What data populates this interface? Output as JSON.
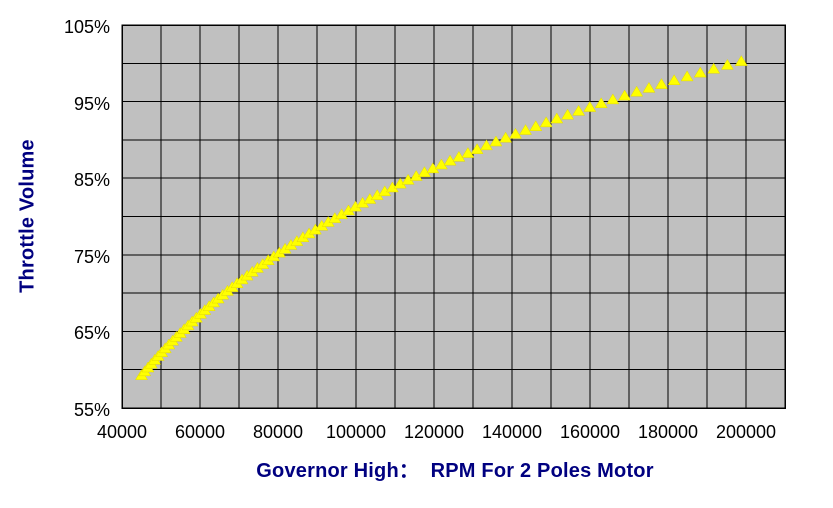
{
  "styles": {
    "page_bg": "#FFFFFF",
    "plot_bg": "#C0C0C0",
    "grid_color": "#000000",
    "border_color": "#000000",
    "marker_fill": "#FFFF00",
    "marker_edge": "#E3D900",
    "axis_title_color": "#000080",
    "tick_label_color": "#000000"
  },
  "chart_data": {
    "type": "scatter",
    "title": "",
    "xlabel": "Governor High：  RPM For 2 Poles Motor",
    "ylabel": "Throttle Volume",
    "xlim": [
      40000,
      210000
    ],
    "ylim": [
      55,
      105
    ],
    "x_ticks": [
      40000,
      60000,
      80000,
      100000,
      120000,
      140000,
      160000,
      180000,
      200000
    ],
    "x_grid_interval": 10000,
    "y_ticks": [
      105,
      95,
      85,
      75,
      65,
      55
    ],
    "y_tick_suffix": "%",
    "y_grid_interval": 5,
    "grid": "on",
    "legend": "none",
    "series": [
      {
        "name": "throttle-vs-rpm",
        "marker": "triangle-up",
        "color": "#FFFF00",
        "points": [
          [
            45000,
            59.3
          ],
          [
            45823,
            59.8
          ],
          [
            46660,
            60.3
          ],
          [
            47513,
            60.8
          ],
          [
            48382,
            61.3
          ],
          [
            49266,
            61.8
          ],
          [
            50167,
            62.3
          ],
          [
            51084,
            62.8
          ],
          [
            52018,
            63.3
          ],
          [
            52969,
            63.8
          ],
          [
            53937,
            64.3
          ],
          [
            54923,
            64.8
          ],
          [
            55928,
            65.3
          ],
          [
            56950,
            65.8
          ],
          [
            57991,
            66.3
          ],
          [
            59051,
            66.8
          ],
          [
            60131,
            67.3
          ],
          [
            61230,
            67.8
          ],
          [
            62350,
            68.3
          ],
          [
            63489,
            68.8
          ],
          [
            64650,
            69.3
          ],
          [
            65832,
            69.8
          ],
          [
            67036,
            70.3
          ],
          [
            68261,
            70.8
          ],
          [
            69509,
            71.3
          ],
          [
            70780,
            71.8
          ],
          [
            72074,
            72.3
          ],
          [
            73391,
            72.8
          ],
          [
            74733,
            73.3
          ],
          [
            76100,
            73.8
          ],
          [
            77491,
            74.3
          ],
          [
            78908,
            74.8
          ],
          [
            80350,
            75.3
          ],
          [
            81819,
            75.8
          ],
          [
            83315,
            76.3
          ],
          [
            84838,
            76.8
          ],
          [
            86389,
            77.3
          ],
          [
            87969,
            77.8
          ],
          [
            89577,
            78.3
          ],
          [
            91215,
            78.8
          ],
          [
            92882,
            79.3
          ],
          [
            94580,
            79.8
          ],
          [
            96310,
            80.3
          ],
          [
            98070,
            80.8
          ],
          [
            99863,
            81.3
          ],
          [
            101689,
            81.8
          ],
          [
            103548,
            82.3
          ],
          [
            105442,
            82.8
          ],
          [
            107369,
            83.3
          ],
          [
            109332,
            83.8
          ],
          [
            111331,
            84.3
          ],
          [
            113367,
            84.8
          ],
          [
            115439,
            85.3
          ],
          [
            117550,
            85.8
          ],
          [
            119699,
            86.3
          ],
          [
            121888,
            86.8
          ],
          [
            124116,
            87.3
          ],
          [
            126385,
            87.8
          ],
          [
            128696,
            88.3
          ],
          [
            131049,
            88.8
          ],
          [
            133445,
            89.3
          ],
          [
            135884,
            89.8
          ],
          [
            138369,
            90.3
          ],
          [
            140898,
            90.8
          ],
          [
            143474,
            91.3
          ],
          [
            146097,
            91.8
          ],
          [
            148768,
            92.3
          ],
          [
            151488,
            92.8
          ],
          [
            154258,
            93.3
          ],
          [
            157078,
            93.8
          ],
          [
            159950,
            94.3
          ],
          [
            162874,
            94.8
          ],
          [
            165852,
            95.3
          ],
          [
            168884,
            95.8
          ],
          [
            171972,
            96.3
          ],
          [
            175116,
            96.8
          ],
          [
            178318,
            97.3
          ],
          [
            181578,
            97.8
          ],
          [
            184898,
            98.3
          ],
          [
            188278,
            98.8
          ],
          [
            191720,
            99.3
          ],
          [
            195225,
            99.8
          ],
          [
            198794,
            100.3
          ]
        ]
      }
    ]
  }
}
